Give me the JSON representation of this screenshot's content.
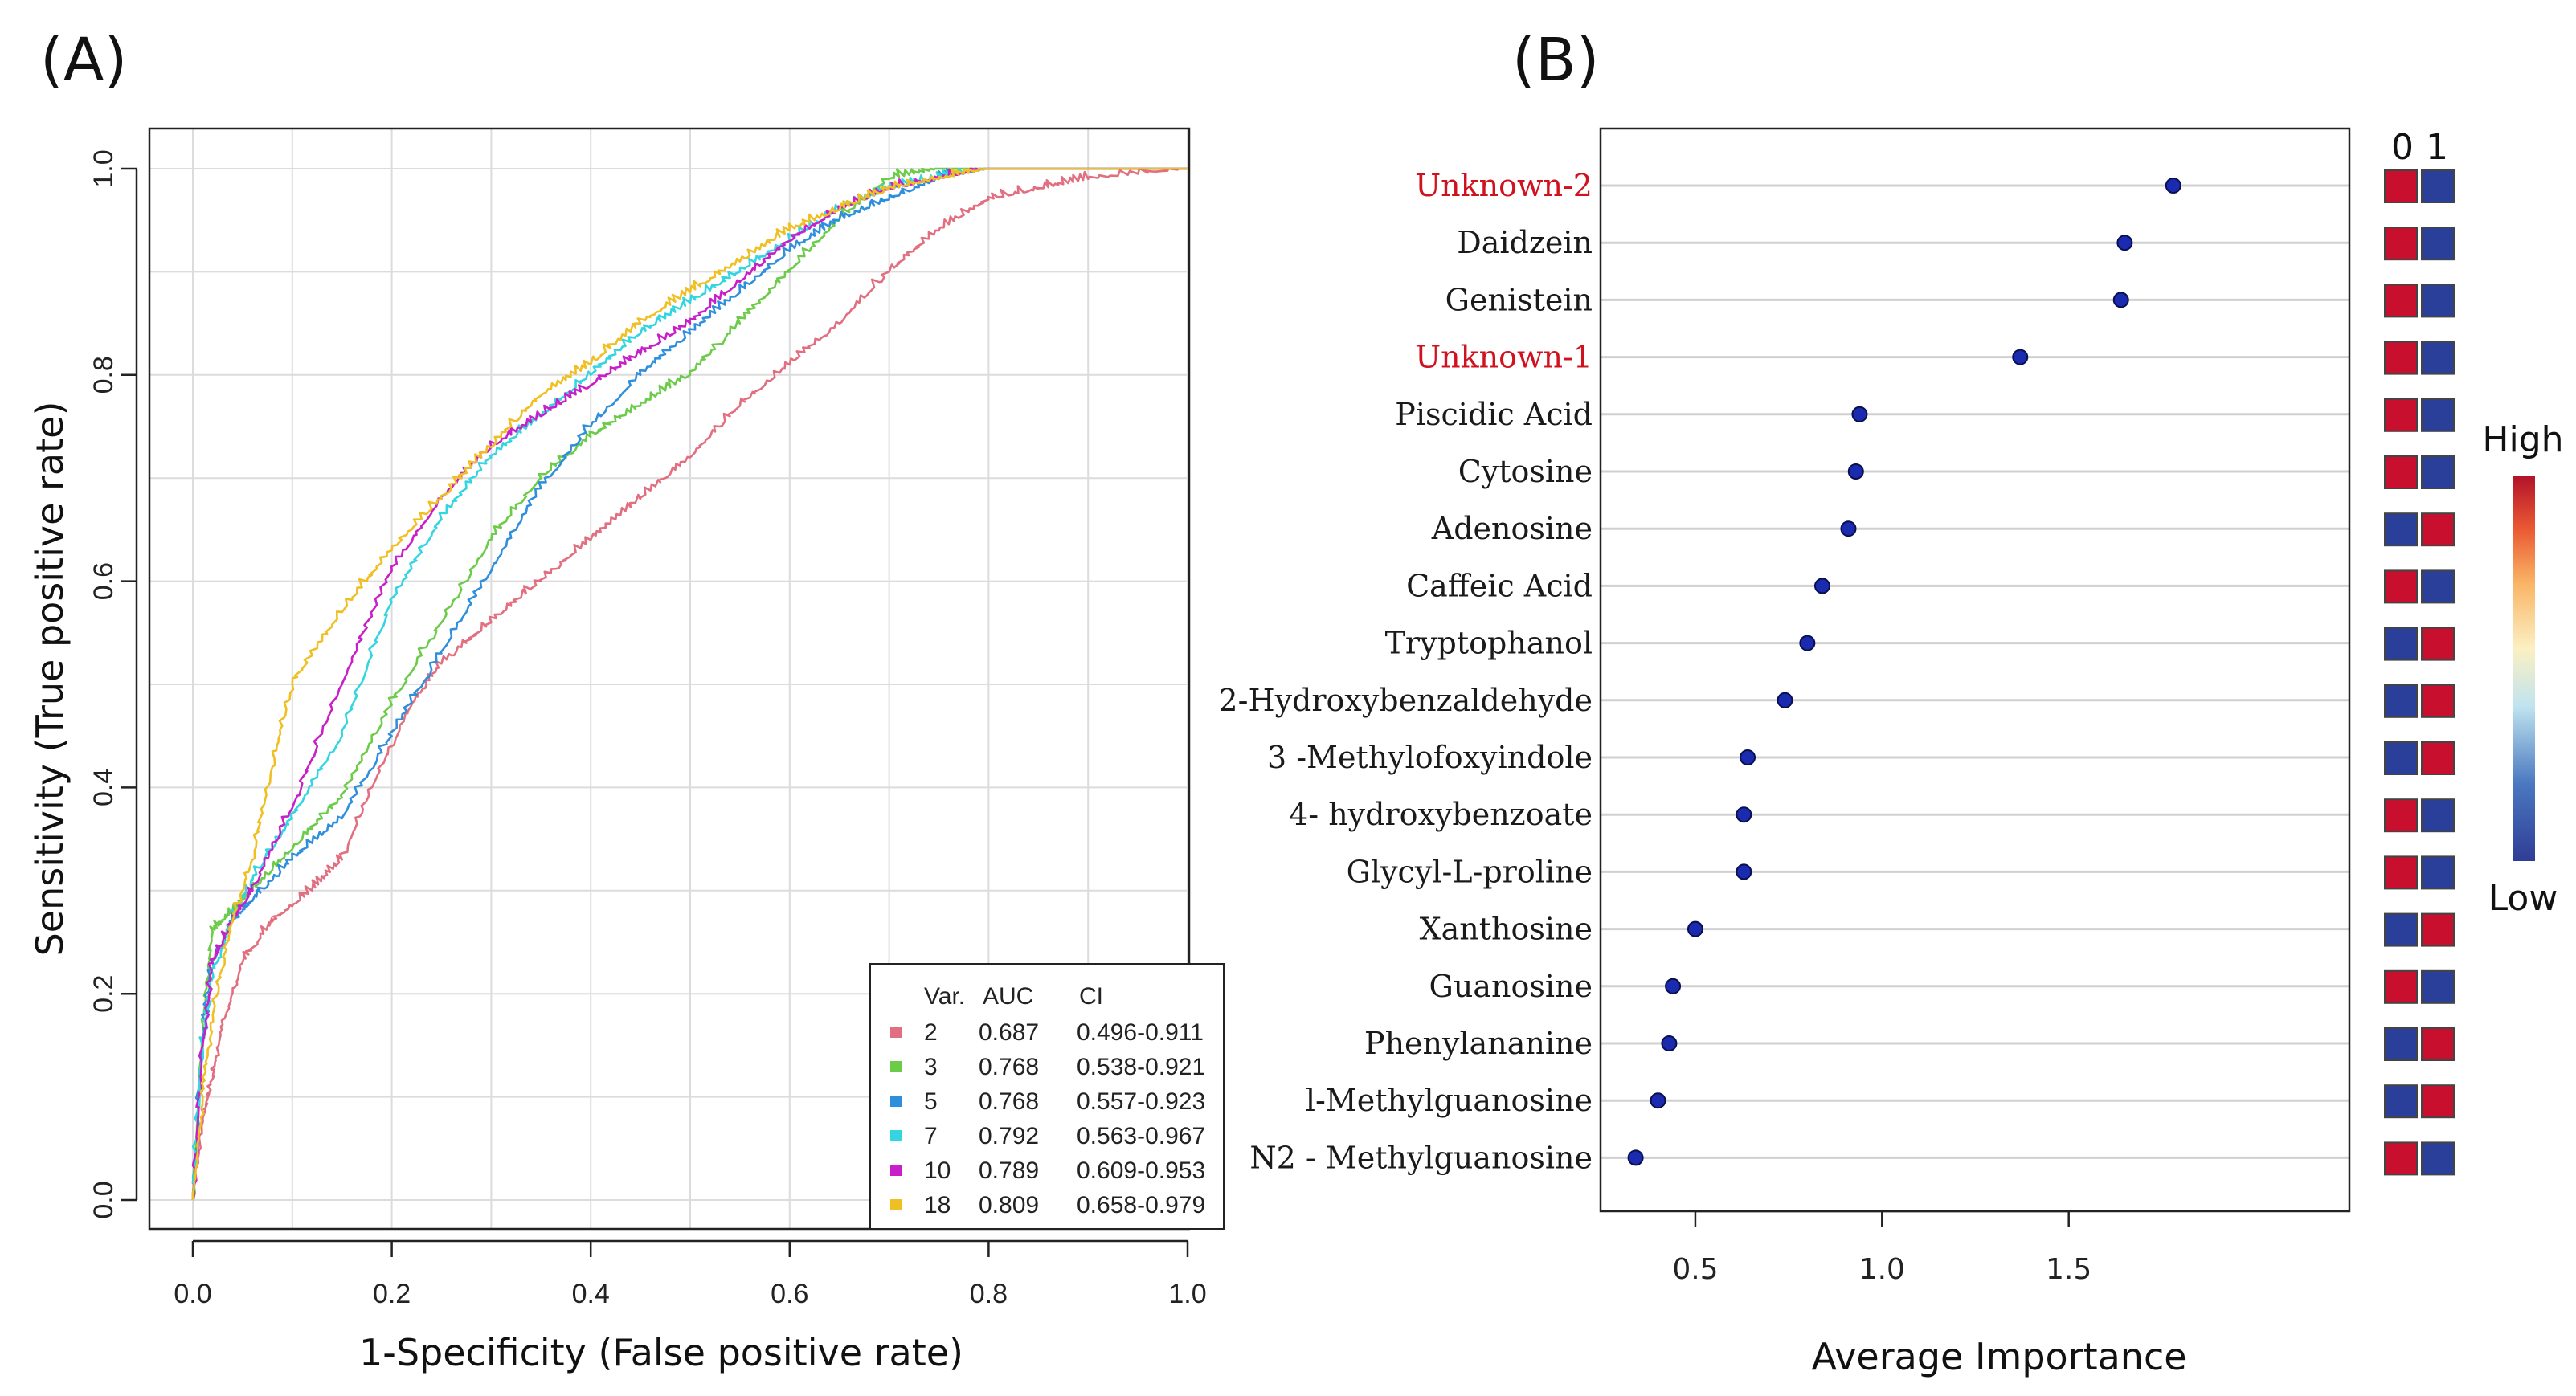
{
  "colors": {
    "red": "#c8102e",
    "blue": "#2a3f9a",
    "series": [
      "#e26f7f",
      "#6ccc4a",
      "#2f8fdc",
      "#33d5e0",
      "#c81fc8",
      "#f0bf23"
    ]
  },
  "chart_data": [
    {
      "panel": "(A)",
      "type": "line",
      "xlabel": "1-Specificity (False positive rate)",
      "ylabel": "Sensitivity (True  positive rate)",
      "xlim": [
        0,
        1
      ],
      "ylim": [
        0,
        1
      ],
      "xticks": [
        "0.0",
        "0.2",
        "0.4",
        "0.6",
        "0.8",
        "1.0"
      ],
      "yticks": [
        "0.0",
        "0.2",
        "0.4",
        "0.6",
        "0.8",
        "1.0"
      ],
      "grid": true,
      "legend": {
        "position": "bottom-right",
        "headers": [
          "Var.",
          "AUC",
          "CI"
        ],
        "entries": [
          {
            "var": "2",
            "auc": "0.687",
            "ci": "0.496-0.911"
          },
          {
            "var": "3",
            "auc": "0.768",
            "ci": "0.538-0.921"
          },
          {
            "var": "5",
            "auc": "0.768",
            "ci": "0.557-0.923"
          },
          {
            "var": "7",
            "auc": "0.792",
            "ci": "0.563-0.967"
          },
          {
            "var": "10",
            "auc": "0.789",
            "ci": "0.609-0.953"
          },
          {
            "var": "18",
            "auc": "0.809",
            "ci": "0.658-0.979"
          }
        ]
      },
      "series": [
        {
          "name": "2",
          "x": [
            0,
            0.01,
            0.02,
            0.03,
            0.05,
            0.08,
            0.12,
            0.15,
            0.18,
            0.22,
            0.25,
            0.3,
            0.35,
            0.4,
            0.45,
            0.5,
            0.55,
            0.6,
            0.65,
            0.7,
            0.75,
            0.8,
            0.85,
            0.9,
            1.0
          ],
          "y": [
            0,
            0.08,
            0.12,
            0.17,
            0.23,
            0.27,
            0.3,
            0.33,
            0.4,
            0.48,
            0.52,
            0.56,
            0.6,
            0.64,
            0.68,
            0.72,
            0.77,
            0.81,
            0.85,
            0.9,
            0.94,
            0.97,
            0.98,
            0.99,
            1.0
          ]
        },
        {
          "name": "3",
          "x": [
            0,
            0.01,
            0.02,
            0.04,
            0.06,
            0.1,
            0.15,
            0.2,
            0.25,
            0.3,
            0.35,
            0.4,
            0.45,
            0.5,
            0.55,
            0.6,
            0.65,
            0.7,
            0.75,
            0.8,
            1.0
          ],
          "y": [
            0,
            0.17,
            0.26,
            0.28,
            0.3,
            0.34,
            0.39,
            0.48,
            0.56,
            0.64,
            0.7,
            0.74,
            0.77,
            0.8,
            0.85,
            0.9,
            0.95,
            0.99,
            1.0,
            1.0,
            1.0
          ]
        },
        {
          "name": "5",
          "x": [
            0,
            0.01,
            0.02,
            0.04,
            0.06,
            0.1,
            0.15,
            0.2,
            0.25,
            0.3,
            0.35,
            0.4,
            0.45,
            0.5,
            0.55,
            0.6,
            0.65,
            0.7,
            0.75,
            0.8,
            1.0
          ],
          "y": [
            0,
            0.16,
            0.23,
            0.27,
            0.29,
            0.33,
            0.37,
            0.45,
            0.53,
            0.61,
            0.69,
            0.75,
            0.8,
            0.84,
            0.88,
            0.92,
            0.95,
            0.97,
            0.99,
            1.0,
            1.0
          ]
        },
        {
          "name": "7",
          "x": [
            0,
            0.01,
            0.02,
            0.04,
            0.06,
            0.1,
            0.15,
            0.2,
            0.25,
            0.3,
            0.35,
            0.4,
            0.45,
            0.5,
            0.55,
            0.6,
            0.65,
            0.7,
            0.75,
            0.8,
            1.0
          ],
          "y": [
            0,
            0.15,
            0.22,
            0.27,
            0.31,
            0.37,
            0.45,
            0.58,
            0.66,
            0.72,
            0.76,
            0.8,
            0.84,
            0.87,
            0.9,
            0.93,
            0.96,
            0.98,
            0.99,
            1.0,
            1.0
          ]
        },
        {
          "name": "10",
          "x": [
            0,
            0.01,
            0.02,
            0.04,
            0.06,
            0.1,
            0.15,
            0.2,
            0.25,
            0.3,
            0.35,
            0.4,
            0.45,
            0.5,
            0.55,
            0.6,
            0.65,
            0.7,
            0.75,
            0.8,
            1.0
          ],
          "y": [
            0,
            0.15,
            0.23,
            0.27,
            0.3,
            0.38,
            0.5,
            0.61,
            0.68,
            0.73,
            0.76,
            0.79,
            0.82,
            0.85,
            0.89,
            0.93,
            0.96,
            0.98,
            0.99,
            1.0,
            1.0
          ]
        },
        {
          "name": "18",
          "x": [
            0,
            0.01,
            0.02,
            0.04,
            0.06,
            0.08,
            0.1,
            0.15,
            0.2,
            0.25,
            0.3,
            0.35,
            0.4,
            0.45,
            0.5,
            0.55,
            0.6,
            0.65,
            0.7,
            0.75,
            0.8,
            1.0
          ],
          "y": [
            0,
            0.1,
            0.18,
            0.27,
            0.33,
            0.42,
            0.5,
            0.57,
            0.63,
            0.68,
            0.73,
            0.78,
            0.81,
            0.85,
            0.88,
            0.91,
            0.94,
            0.96,
            0.98,
            0.99,
            1.0,
            1.0
          ]
        }
      ]
    },
    {
      "panel": "(B)",
      "type": "scatter",
      "xlabel": "Average Importance",
      "xlim": [
        0.3,
        2.2
      ],
      "xticks": [
        0.5,
        1.0,
        1.5
      ],
      "xtick_labels": [
        "0.5",
        "1.0",
        "1.5"
      ],
      "heatmap_columns": [
        "0",
        "1"
      ],
      "colorbar": {
        "high": "High",
        "low": "Low"
      },
      "metabolites": [
        {
          "name": "Unknown-2",
          "value": 1.78,
          "highlight": true,
          "heat": [
            "red",
            "blue"
          ]
        },
        {
          "name": "Daidzein",
          "value": 1.65,
          "highlight": false,
          "heat": [
            "red",
            "blue"
          ]
        },
        {
          "name": "Genistein",
          "value": 1.64,
          "highlight": false,
          "heat": [
            "red",
            "blue"
          ]
        },
        {
          "name": "Unknown-1",
          "value": 1.37,
          "highlight": true,
          "heat": [
            "red",
            "blue"
          ]
        },
        {
          "name": "Piscidic Acid",
          "value": 0.94,
          "highlight": false,
          "heat": [
            "red",
            "blue"
          ]
        },
        {
          "name": "Cytosine",
          "value": 0.93,
          "highlight": false,
          "heat": [
            "red",
            "blue"
          ]
        },
        {
          "name": "Adenosine",
          "value": 0.91,
          "highlight": false,
          "heat": [
            "blue",
            "red"
          ]
        },
        {
          "name": "Caffeic Acid",
          "value": 0.84,
          "highlight": false,
          "heat": [
            "red",
            "blue"
          ]
        },
        {
          "name": "Tryptophanol",
          "value": 0.8,
          "highlight": false,
          "heat": [
            "blue",
            "red"
          ]
        },
        {
          "name": "2-Hydroxybenzaldehyde",
          "value": 0.74,
          "highlight": false,
          "heat": [
            "blue",
            "red"
          ]
        },
        {
          "name": "3 -Methylofoxyindole",
          "value": 0.64,
          "highlight": false,
          "heat": [
            "blue",
            "red"
          ]
        },
        {
          "name": "4- hydroxybenzoate",
          "value": 0.63,
          "highlight": false,
          "heat": [
            "red",
            "blue"
          ]
        },
        {
          "name": "Glycyl-L-proline",
          "value": 0.63,
          "highlight": false,
          "heat": [
            "red",
            "blue"
          ]
        },
        {
          "name": "Xanthosine",
          "value": 0.5,
          "highlight": false,
          "heat": [
            "blue",
            "red"
          ]
        },
        {
          "name": "Guanosine",
          "value": 0.44,
          "highlight": false,
          "heat": [
            "red",
            "blue"
          ]
        },
        {
          "name": "Phenylananine",
          "value": 0.43,
          "highlight": false,
          "heat": [
            "blue",
            "red"
          ]
        },
        {
          "name": "l-Methylguanosine",
          "value": 0.4,
          "highlight": false,
          "heat": [
            "blue",
            "red"
          ]
        },
        {
          "name": "N2 - Methylguanosine",
          "value": 0.34,
          "highlight": false,
          "heat": [
            "red",
            "blue"
          ]
        }
      ]
    }
  ]
}
